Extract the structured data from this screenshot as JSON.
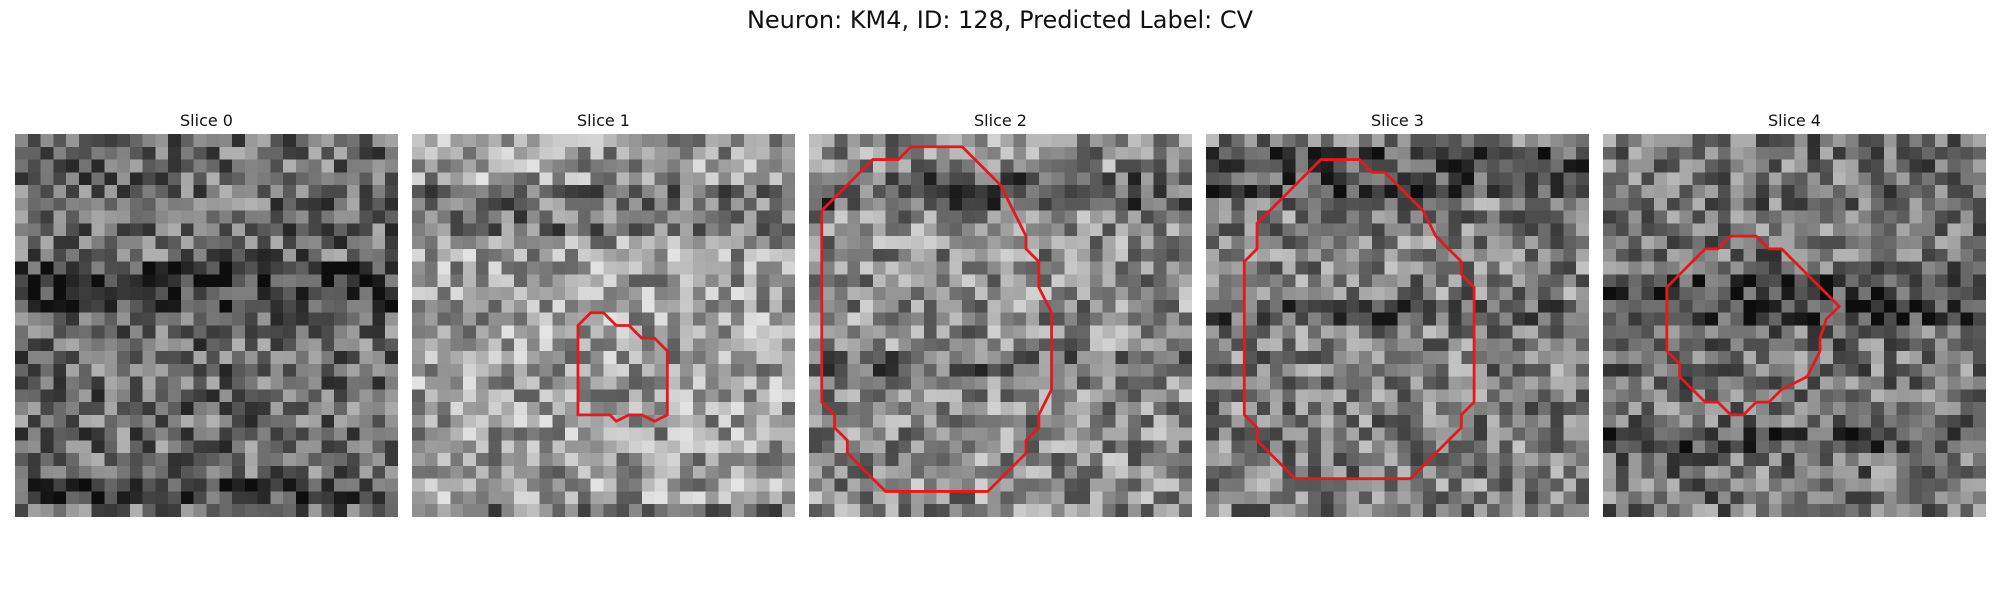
{
  "figure": {
    "title": "Neuron: KM4, ID: 128, Predicted Label: CV"
  },
  "panels": [
    {
      "title": "Slice 0",
      "tone": {
        "bright": 0.42,
        "dark_band_top": 0.33,
        "dark_band_bottom": 0.88
      },
      "contour": []
    },
    {
      "title": "Slice 1",
      "tone": {
        "bright": 0.62,
        "dark_band_top": 0.12,
        "dark_band_bottom": 0.95
      },
      "contour": [
        [
          13,
          16
        ],
        [
          13,
          22
        ],
        [
          15.5,
          22
        ],
        [
          16,
          22.5
        ],
        [
          17,
          22
        ],
        [
          18,
          22
        ],
        [
          19,
          22.5
        ],
        [
          20,
          22
        ],
        [
          20,
          17
        ],
        [
          19,
          16
        ],
        [
          18,
          16
        ],
        [
          17,
          15
        ],
        [
          16,
          15
        ],
        [
          15,
          14
        ],
        [
          14,
          14
        ],
        [
          13,
          15
        ]
      ]
    },
    {
      "title": "Slice 2",
      "tone": {
        "bright": 0.55,
        "dark_band_top": 0.08,
        "dark_band_bottom": 0.55
      },
      "contour": [
        [
          9,
          1
        ],
        [
          12,
          1
        ],
        [
          13,
          2
        ],
        [
          14,
          3
        ],
        [
          15,
          4
        ],
        [
          16,
          6
        ],
        [
          16.5,
          7
        ],
        [
          17,
          8
        ],
        [
          17,
          9
        ],
        [
          18,
          10
        ],
        [
          18,
          12
        ],
        [
          19,
          14
        ],
        [
          19,
          20
        ],
        [
          18,
          22
        ],
        [
          18,
          23
        ],
        [
          17,
          24
        ],
        [
          17,
          25
        ],
        [
          16,
          26
        ],
        [
          15,
          27
        ],
        [
          14,
          28
        ],
        [
          6,
          28
        ],
        [
          5,
          27
        ],
        [
          4,
          26
        ],
        [
          3,
          25
        ],
        [
          3,
          24
        ],
        [
          2,
          23
        ],
        [
          2,
          22
        ],
        [
          1,
          21
        ],
        [
          1,
          6
        ],
        [
          2,
          5
        ],
        [
          3,
          4
        ],
        [
          4,
          3
        ],
        [
          5,
          2
        ],
        [
          7,
          2
        ],
        [
          8,
          1
        ]
      ]
    },
    {
      "title": "Slice 3",
      "tone": {
        "bright": 0.5,
        "dark_band_top": 0.02,
        "dark_band_bottom": 0.4
      },
      "contour": [
        [
          10,
          2
        ],
        [
          12,
          2
        ],
        [
          13,
          3
        ],
        [
          14,
          3
        ],
        [
          15,
          4
        ],
        [
          16,
          5
        ],
        [
          17,
          6
        ],
        [
          18,
          8
        ],
        [
          19,
          9
        ],
        [
          20,
          10
        ],
        [
          20,
          11
        ],
        [
          21,
          12
        ],
        [
          21,
          21
        ],
        [
          20,
          22
        ],
        [
          20,
          23
        ],
        [
          19,
          24
        ],
        [
          18,
          25
        ],
        [
          17,
          26
        ],
        [
          16,
          27
        ],
        [
          7,
          27
        ],
        [
          6,
          26
        ],
        [
          5,
          25
        ],
        [
          4,
          24
        ],
        [
          4,
          23
        ],
        [
          3,
          22
        ],
        [
          3,
          10
        ],
        [
          4,
          9
        ],
        [
          4,
          7
        ],
        [
          5,
          6
        ],
        [
          6,
          5
        ],
        [
          7,
          4
        ],
        [
          8,
          3
        ],
        [
          9,
          2
        ]
      ]
    },
    {
      "title": "Slice 4",
      "tone": {
        "bright": 0.45,
        "dark_band_top": 0.35,
        "dark_band_bottom": 0.75
      },
      "contour": [
        [
          10,
          8
        ],
        [
          12,
          8
        ],
        [
          13,
          9
        ],
        [
          14,
          9
        ],
        [
          15,
          10
        ],
        [
          16,
          11
        ],
        [
          17,
          12
        ],
        [
          18,
          13
        ],
        [
          18.5,
          13.5
        ],
        [
          17.5,
          14.5
        ],
        [
          17,
          16
        ],
        [
          17,
          17
        ],
        [
          16.5,
          18
        ],
        [
          16,
          19
        ],
        [
          15,
          19.5
        ],
        [
          14,
          20
        ],
        [
          13,
          21
        ],
        [
          12,
          21
        ],
        [
          11,
          22
        ],
        [
          10,
          22
        ],
        [
          9,
          21
        ],
        [
          8,
          21
        ],
        [
          7,
          20
        ],
        [
          6,
          19
        ],
        [
          6,
          18
        ],
        [
          5,
          17
        ],
        [
          5,
          12
        ],
        [
          6,
          11
        ],
        [
          7,
          10
        ],
        [
          8,
          9
        ],
        [
          9,
          9
        ]
      ]
    }
  ],
  "colors": {
    "contour": "#e31a1c"
  }
}
